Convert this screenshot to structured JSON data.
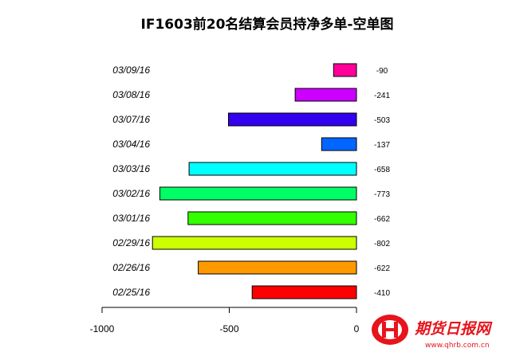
{
  "chart_data": {
    "type": "bar",
    "orientation": "horizontal",
    "title": "IF1603前20名结算会员持净多单-空单图",
    "categories": [
      "03/09/16",
      "03/08/16",
      "03/07/16",
      "03/04/16",
      "03/03/16",
      "03/02/16",
      "03/01/16",
      "02/29/16",
      "02/26/16",
      "02/25/16"
    ],
    "values": [
      -90,
      -241,
      -503,
      -137,
      -658,
      -773,
      -662,
      -802,
      -622,
      -410
    ],
    "value_labels": [
      "-90",
      "-241",
      "-503",
      "-137",
      "-658",
      "-773",
      "-662",
      "-802",
      "-622",
      "-410"
    ],
    "colors": [
      "#ff0099",
      "#cc00ff",
      "#3300ee",
      "#0066ff",
      "#00ffff",
      "#00ff66",
      "#33ff00",
      "#ccff00",
      "#ff9900",
      "#ff0000"
    ],
    "xlim": [
      -1000,
      0
    ],
    "x_ticks": [
      -1000,
      -500,
      0
    ],
    "x_tick_labels": [
      "-1000",
      "-500",
      "0"
    ],
    "xlabel": "",
    "ylabel": "",
    "grid": false,
    "legend": "none"
  },
  "watermark": {
    "name": "期货日报网",
    "url": "www.qhrb.com.cn"
  }
}
